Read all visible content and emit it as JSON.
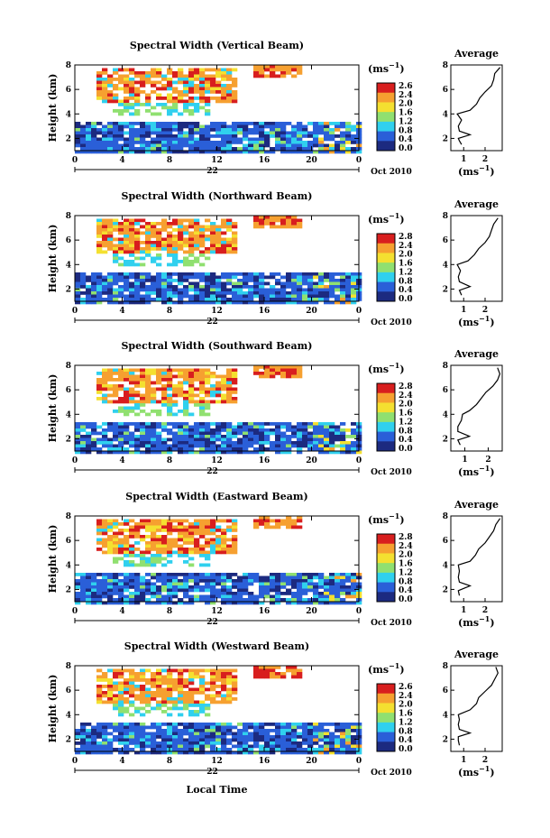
{
  "figure": {
    "xlabel_bottom": "Local Time",
    "day_label": "22",
    "month_label": "Oct 2010",
    "colorbar_unit": "(ms",
    "unit_exponent": "−1",
    "unit_close": ")",
    "colors": {
      "low": "#1c2a80",
      "blue": "#2a5fd8",
      "cyan": "#30d0ee",
      "green": "#90e070",
      "yellow": "#f4e030",
      "orange": "#f6a030",
      "red": "#d81e1e",
      "black_bottom": "#101020"
    }
  },
  "chart_data": [
    {
      "type": "heatmap",
      "title": "Spectral Width (Vertical Beam)",
      "ylabel": "Height (km)",
      "x_ticks": [
        "0",
        "4",
        "8",
        "12",
        "16",
        "20",
        "0"
      ],
      "y_ticks": [
        "2",
        "4",
        "6",
        "8"
      ],
      "xlim": [
        0,
        24
      ],
      "ylim": [
        1,
        8
      ],
      "colorbar_ticks": [
        "2.6",
        "2.4",
        "2.0",
        "1.6",
        "1.2",
        "0.8",
        "0.4",
        "0.0"
      ],
      "colorbar_range": [
        0,
        2.8
      ],
      "average": {
        "title": "Average",
        "xlabel": "(ms",
        "x_ticks": [
          "1",
          "2"
        ],
        "xlim": [
          0.4,
          2.8
        ],
        "y_ticks": [
          "2",
          "4",
          "6",
          "8"
        ],
        "profile": [
          [
            1.5,
            0.9
          ],
          [
            1.8,
            0.8
          ],
          [
            2.0,
            0.75
          ],
          [
            2.3,
            1.3
          ],
          [
            2.6,
            0.8
          ],
          [
            3.0,
            0.75
          ],
          [
            3.5,
            0.9
          ],
          [
            4.0,
            0.7
          ],
          [
            4.3,
            1.3
          ],
          [
            4.8,
            1.6
          ],
          [
            5.3,
            1.75
          ],
          [
            5.8,
            2.0
          ],
          [
            6.3,
            2.3
          ],
          [
            6.8,
            2.4
          ],
          [
            7.3,
            2.45
          ],
          [
            7.8,
            2.7
          ]
        ]
      }
    },
    {
      "type": "heatmap",
      "title": "Spectral Width (Northward Beam)",
      "ylabel": "Height (km)",
      "x_ticks": [
        "0",
        "4",
        "8",
        "12",
        "16",
        "20",
        "0"
      ],
      "y_ticks": [
        "2",
        "4",
        "6",
        "8"
      ],
      "xlim": [
        0,
        24
      ],
      "ylim": [
        1,
        8
      ],
      "colorbar_ticks": [
        "2.8",
        "2.4",
        "2.0",
        "1.6",
        "1.2",
        "0.8",
        "0.4",
        "0.0"
      ],
      "colorbar_range": [
        0,
        2.8
      ],
      "average": {
        "title": "Average",
        "xlabel": "(ms",
        "x_ticks": [
          "1",
          "2"
        ],
        "xlim": [
          0.4,
          2.8
        ],
        "y_ticks": [
          "2",
          "4",
          "6",
          "8"
        ],
        "profile": [
          [
            1.5,
            0.9
          ],
          [
            1.9,
            0.8
          ],
          [
            2.2,
            1.3
          ],
          [
            2.6,
            0.8
          ],
          [
            3.0,
            0.75
          ],
          [
            3.5,
            0.85
          ],
          [
            4.0,
            0.7
          ],
          [
            4.3,
            1.2
          ],
          [
            4.8,
            1.5
          ],
          [
            5.3,
            1.7
          ],
          [
            5.8,
            2.0
          ],
          [
            6.3,
            2.2
          ],
          [
            6.8,
            2.3
          ],
          [
            7.3,
            2.4
          ],
          [
            7.8,
            2.6
          ]
        ]
      }
    },
    {
      "type": "heatmap",
      "title": "Spectral Width (Southward Beam)",
      "ylabel": "Height (km)",
      "x_ticks": [
        "0",
        "4",
        "8",
        "12",
        "16",
        "20",
        "0"
      ],
      "y_ticks": [
        "2",
        "4",
        "6",
        "8"
      ],
      "xlim": [
        0,
        24
      ],
      "ylim": [
        1,
        8
      ],
      "colorbar_ticks": [
        "2.8",
        "2.4",
        "2.0",
        "1.6",
        "1.2",
        "0.8",
        "0.4",
        "0.0"
      ],
      "colorbar_range": [
        0,
        2.8
      ],
      "average": {
        "title": "Average",
        "xlabel": "(ms",
        "x_ticks": [
          "1",
          "2"
        ],
        "xlim": [
          0.4,
          2.6
        ],
        "y_ticks": [
          "2",
          "4",
          "6",
          "8"
        ],
        "profile": [
          [
            1.5,
            0.8
          ],
          [
            1.9,
            0.7
          ],
          [
            2.2,
            1.2
          ],
          [
            2.6,
            0.7
          ],
          [
            3.0,
            0.7
          ],
          [
            3.5,
            0.85
          ],
          [
            4.0,
            0.9
          ],
          [
            4.3,
            1.2
          ],
          [
            4.8,
            1.5
          ],
          [
            5.3,
            1.7
          ],
          [
            5.8,
            1.9
          ],
          [
            6.3,
            2.2
          ],
          [
            6.8,
            2.4
          ],
          [
            7.3,
            2.5
          ],
          [
            7.8,
            2.4
          ]
        ]
      }
    },
    {
      "type": "heatmap",
      "title": "Spectral Width (Eastward Beam)",
      "ylabel": "Height (km)",
      "x_ticks": [
        "0",
        "4",
        "8",
        "12",
        "16",
        "20",
        "0"
      ],
      "y_ticks": [
        "2",
        "4",
        "6",
        "8"
      ],
      "xlim": [
        0,
        24
      ],
      "ylim": [
        1,
        8
      ],
      "colorbar_ticks": [
        "2.8",
        "2.4",
        "2.0",
        "1.6",
        "1.2",
        "0.8",
        "0.4",
        "0.0"
      ],
      "colorbar_range": [
        0,
        2.8
      ],
      "average": {
        "title": "Average",
        "xlabel": "(ms",
        "x_ticks": [
          "1",
          "2"
        ],
        "xlim": [
          0.4,
          2.8
        ],
        "y_ticks": [
          "2",
          "4",
          "6",
          "8"
        ],
        "profile": [
          [
            1.5,
            0.8
          ],
          [
            1.9,
            0.75
          ],
          [
            2.3,
            1.3
          ],
          [
            2.6,
            0.8
          ],
          [
            3.0,
            0.75
          ],
          [
            3.5,
            0.8
          ],
          [
            4.0,
            0.75
          ],
          [
            4.3,
            1.3
          ],
          [
            4.8,
            1.55
          ],
          [
            5.3,
            1.7
          ],
          [
            5.8,
            2.0
          ],
          [
            6.3,
            2.2
          ],
          [
            6.8,
            2.4
          ],
          [
            7.3,
            2.5
          ],
          [
            7.8,
            2.7
          ]
        ]
      }
    },
    {
      "type": "heatmap",
      "title": "Spectral Width (Westward Beam)",
      "ylabel": "Height (km)",
      "x_ticks": [
        "0",
        "4",
        "8",
        "12",
        "16",
        "20",
        "0"
      ],
      "y_ticks": [
        "2",
        "4",
        "6",
        "8"
      ],
      "xlim": [
        0,
        24
      ],
      "ylim": [
        1,
        8
      ],
      "colorbar_ticks": [
        "2.6",
        "2.4",
        "2.0",
        "1.6",
        "1.2",
        "0.8",
        "0.4",
        "0.0"
      ],
      "colorbar_range": [
        0,
        2.8
      ],
      "average": {
        "title": "Average",
        "xlabel": "(ms",
        "x_ticks": [
          "1",
          "2"
        ],
        "xlim": [
          0.4,
          2.8
        ],
        "y_ticks": [
          "2",
          "4",
          "6",
          "8"
        ],
        "profile": [
          [
            1.5,
            0.8
          ],
          [
            1.9,
            0.75
          ],
          [
            2.2,
            0.75
          ],
          [
            2.5,
            1.3
          ],
          [
            2.8,
            0.8
          ],
          [
            3.2,
            0.75
          ],
          [
            3.6,
            0.8
          ],
          [
            4.0,
            0.75
          ],
          [
            4.4,
            1.3
          ],
          [
            4.9,
            1.6
          ],
          [
            5.4,
            1.7
          ],
          [
            5.9,
            2.0
          ],
          [
            6.4,
            2.3
          ],
          [
            6.9,
            2.45
          ],
          [
            7.4,
            2.6
          ],
          [
            7.9,
            2.5
          ]
        ]
      }
    }
  ]
}
